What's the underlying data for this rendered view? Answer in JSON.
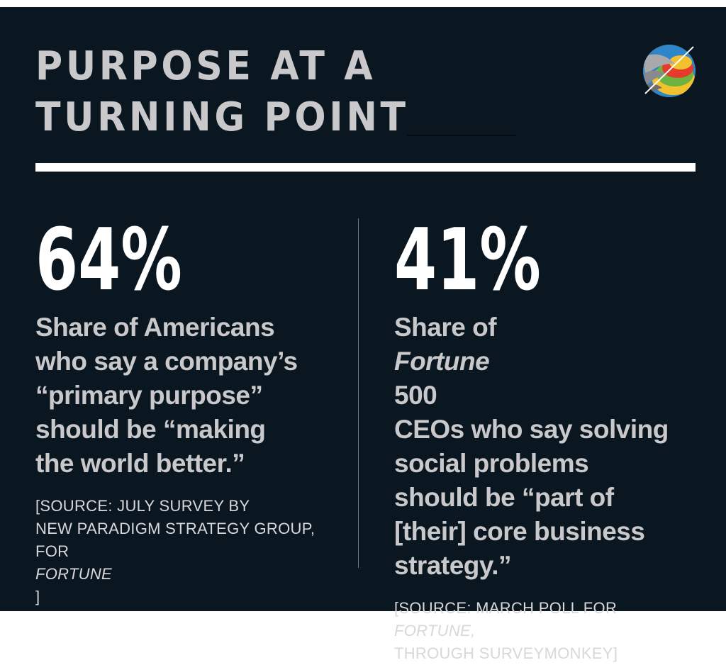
{
  "title": {
    "line1": "PURPOSE AT A",
    "line2": "TURNING POINT"
  },
  "logo": {
    "icon": "fortune-rainbow-arc-logo",
    "colors": [
      "#c9c9cb",
      "#e53b2c",
      "#f2c12e",
      "#6cb33f",
      "#2e86c8"
    ]
  },
  "left": {
    "stat": "64%",
    "desc_lines": [
      "Share of Americans",
      "who say a company’s",
      "“primary purpose”",
      "should be “making",
      "the world better.”"
    ],
    "source_lines": {
      "line1": "[SOURCE:  JULY SURVEY BY",
      "line2": "NEW PARADIGM STRATEGY GROUP,",
      "line3_prefix": "FOR ",
      "line3_italic": "FORTUNE",
      "line3_suffix": "]"
    }
  },
  "right": {
    "stat": "41%",
    "desc": {
      "line1_prefix": "Share of ",
      "line1_italic": "Fortune",
      "line1_suffix": " 500",
      "line2": "CEOs who say solving",
      "line3": "social problems",
      "line4": "should be “part of",
      "line5": "[their] core business",
      "line6": "strategy.”"
    },
    "source_lines": {
      "line1_prefix": "[SOURCE: MARCH POLL FOR ",
      "line1_italic": "FORTUNE,",
      "line2": "THROUGH SURVEYMONKEY]"
    }
  },
  "colors": {
    "background": "#0a1721",
    "title": "#c9c9cb",
    "stat": "#ffffff",
    "text": "#c9c9cb"
  }
}
